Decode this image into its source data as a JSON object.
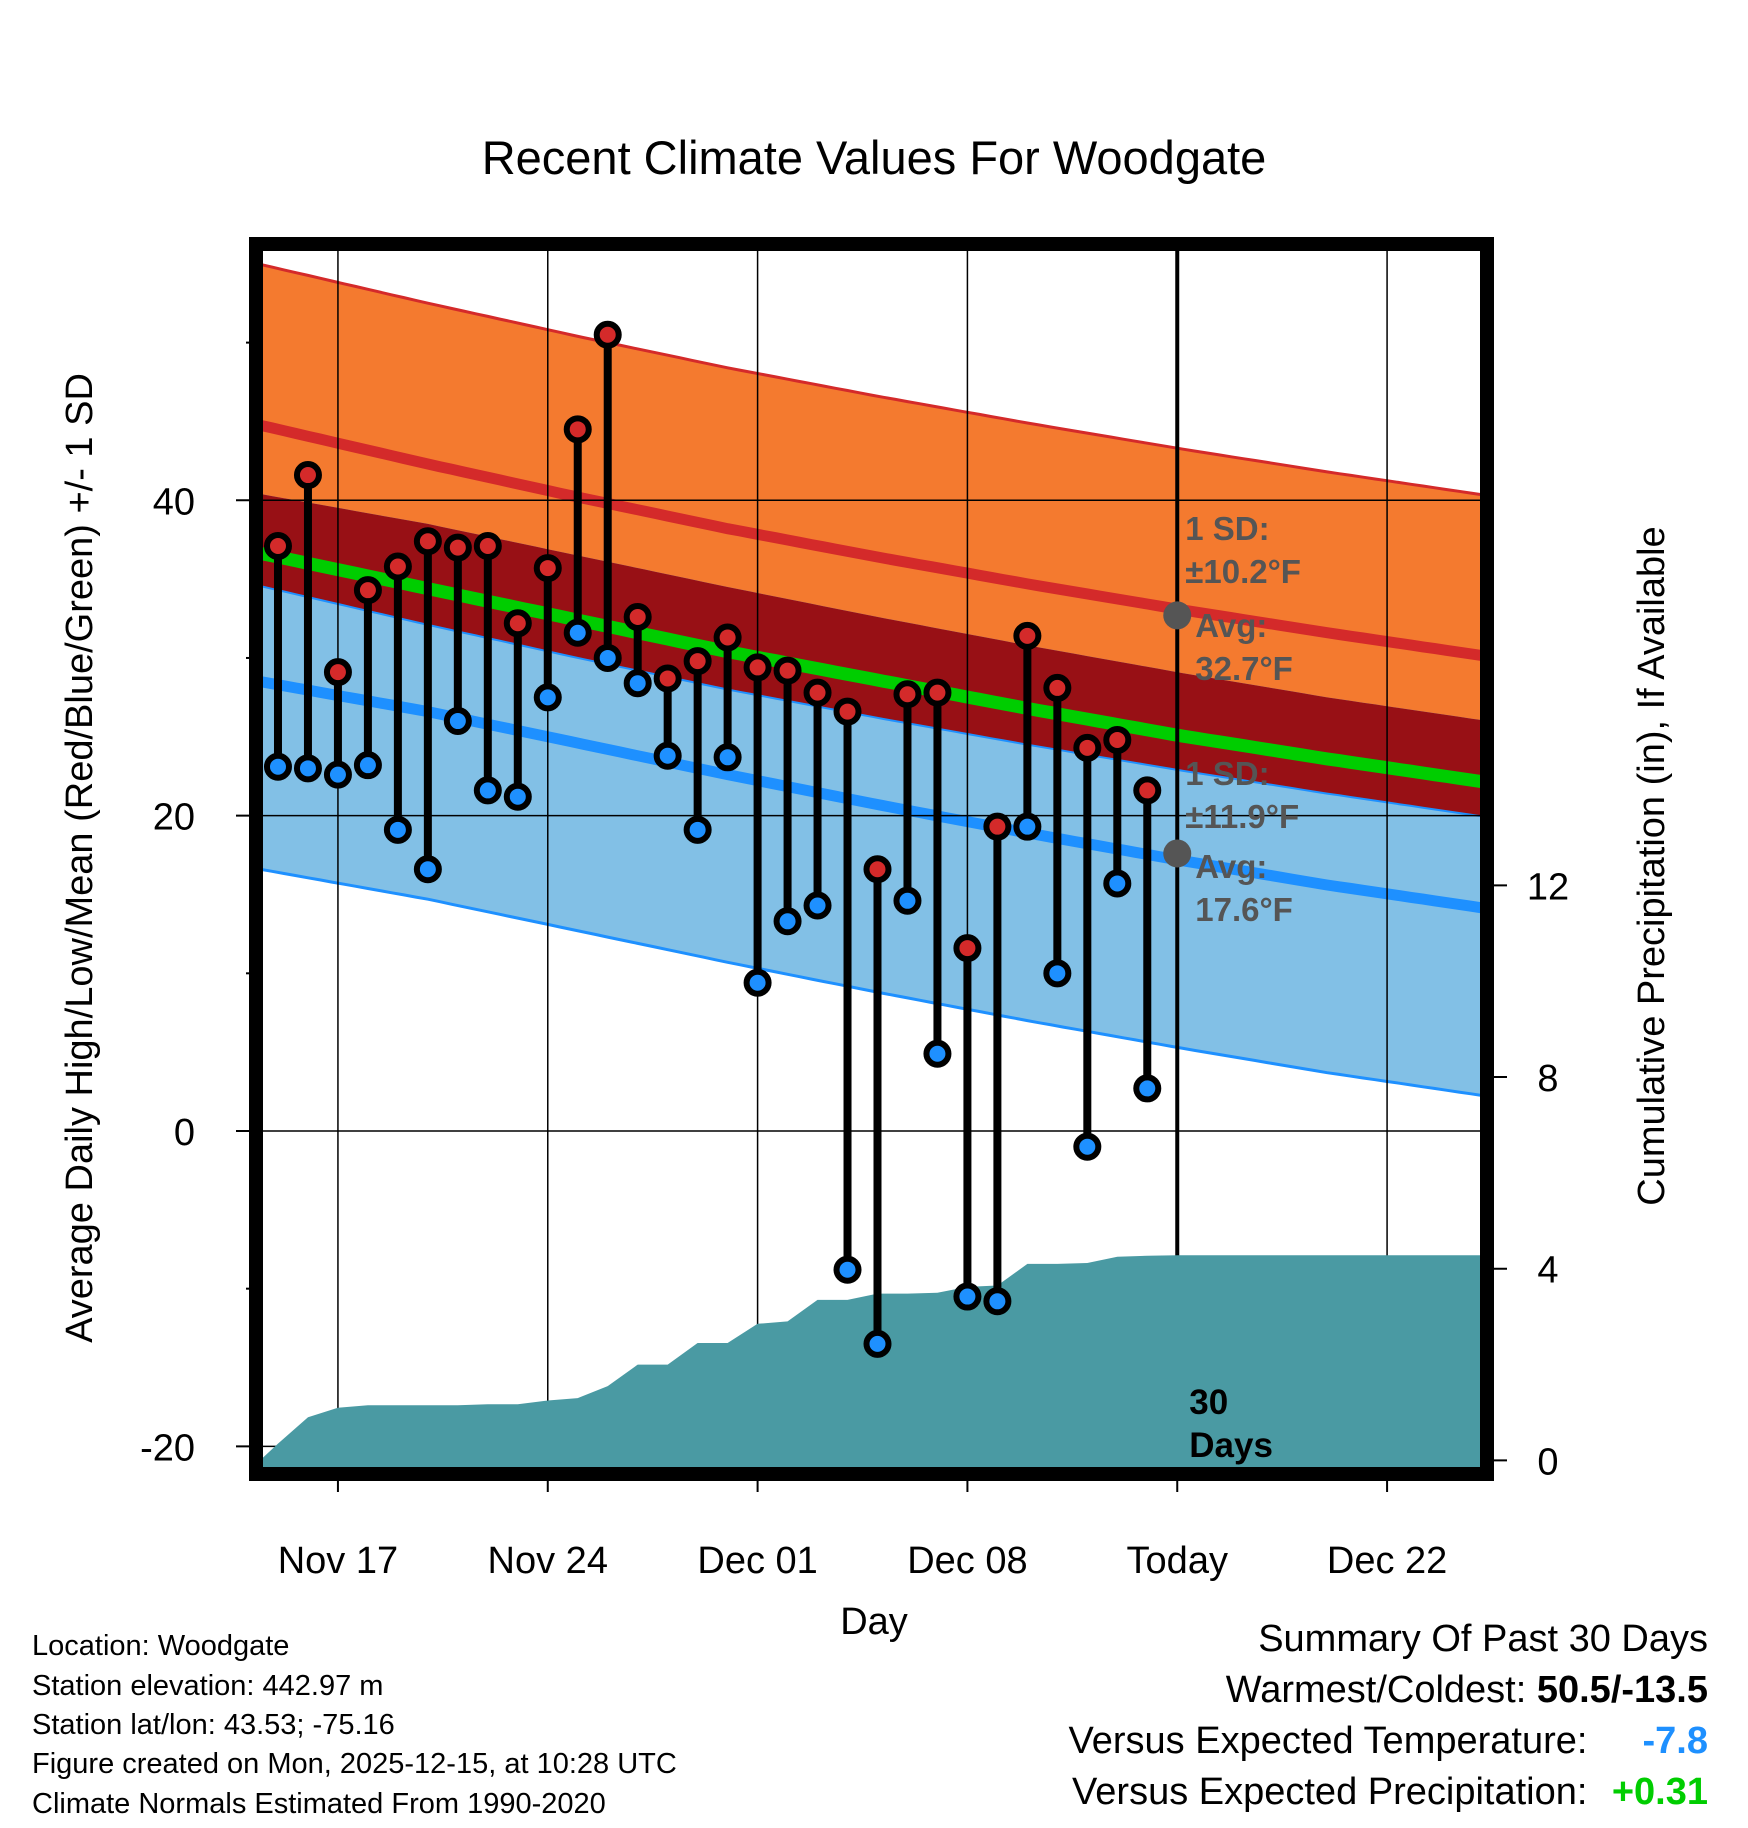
{
  "chart_data": {
    "type": "line",
    "title": "Recent Climate Values For Woodgate",
    "xlabel": "Day",
    "ylabel": "Average Daily High/Low/Mean (Red/Blue/Green) +/- 1 SD",
    "y2label": "Cumulative Precipitation (in), If Available",
    "x_tick_labels": [
      "Nov 17",
      "Nov 24",
      "Dec 01",
      "Dec 08",
      "Today",
      "Dec 22"
    ],
    "x_tick_days": [
      2,
      9,
      16,
      23,
      30,
      37
    ],
    "xlim": [
      -0.6,
      40.2
    ],
    "ylim": [
      -21.5,
      56
    ],
    "y_ticks": [
      -20,
      0,
      20,
      40
    ],
    "y_tick_labels": [
      "-20",
      "0",
      "20",
      "40"
    ],
    "y2lim": [
      -0.2,
      25.3
    ],
    "y2_ticks": [
      0,
      4,
      8,
      12
    ],
    "y2_tick_labels": [
      "0",
      "4",
      "8",
      "12"
    ],
    "today_day": 30,
    "today_label_line1": "30",
    "today_label_line2": "Days",
    "normals": {
      "days": [
        0,
        5,
        10,
        15,
        20,
        25,
        30,
        35,
        40
      ],
      "high_mean": [
        44.5,
        42.3,
        40.2,
        38.2,
        36.4,
        34.7,
        33.1,
        31.6,
        30.2
      ],
      "high_sd": 10.2,
      "low_mean": [
        28.3,
        26.6,
        24.6,
        22.6,
        20.7,
        18.9,
        17.2,
        15.6,
        14.2
      ],
      "low_sd": 11.9,
      "mean": [
        36.4,
        34.4,
        32.4,
        30.4,
        28.6,
        26.8,
        25.1,
        23.6,
        22.2
      ]
    },
    "series": [
      {
        "name": "Daily High",
        "color": "#d42a2a",
        "values": [
          37.1,
          41.6,
          29.1,
          34.3,
          35.8,
          37.4,
          37.0,
          37.1,
          32.2,
          35.7,
          44.5,
          50.5,
          32.6,
          28.7,
          29.8,
          31.3,
          29.4,
          29.2,
          27.8,
          26.6,
          16.6,
          27.7,
          27.8,
          11.6,
          19.3,
          31.4,
          28.1,
          24.3,
          24.8,
          21.6
        ]
      },
      {
        "name": "Daily Low",
        "color": "#1e90ff",
        "values": [
          23.1,
          23.0,
          22.6,
          23.2,
          19.1,
          16.6,
          26.0,
          21.6,
          21.2,
          27.5,
          31.6,
          30.0,
          28.4,
          23.8,
          19.1,
          23.7,
          9.4,
          13.3,
          14.3,
          -8.8,
          -13.5,
          14.6,
          4.9,
          -10.5,
          -10.8,
          19.3,
          10.0,
          -1.0,
          15.7,
          2.7
        ]
      },
      {
        "name": "Cumulative Precipitation",
        "color": "#4a9aa3",
        "days": [
          -0.6,
          0,
          1,
          2,
          3,
          4,
          5,
          6,
          7,
          8,
          9,
          10,
          11,
          12,
          13,
          14,
          15,
          16,
          17,
          18,
          19,
          20,
          21,
          22,
          23,
          24,
          25,
          26,
          27,
          28,
          29,
          30,
          40.2
        ],
        "values": [
          0,
          0.35,
          0.9,
          1.1,
          1.15,
          1.15,
          1.15,
          1.15,
          1.17,
          1.17,
          1.25,
          1.3,
          1.55,
          2.0,
          2.0,
          2.45,
          2.45,
          2.85,
          2.9,
          3.35,
          3.35,
          3.48,
          3.48,
          3.5,
          3.62,
          3.65,
          4.1,
          4.1,
          4.12,
          4.25,
          4.27,
          4.28,
          4.28
        ]
      }
    ],
    "annotations": {
      "high_sd_line1": "1 SD:",
      "high_sd_line2": "±10.2°F",
      "high_avg_line1": "Avg:",
      "high_avg_line2": "32.7°F",
      "high_avg_value": 32.7,
      "low_sd_line1": "1 SD:",
      "low_sd_line2": "±11.9°F",
      "low_avg_line1": "Avg:",
      "low_avg_line2": "17.6°F",
      "low_avg_value": 17.6
    },
    "colors": {
      "high_band": "#f47a2f",
      "high_line": "#d42a2a",
      "overlap_band": "#981015",
      "low_band": "#82c0e6",
      "low_line": "#1e90ff",
      "mean_line": "#00cd00",
      "precip": "#4a9aa3",
      "annotation": "#555555"
    }
  },
  "station": {
    "location": "Location: Woodgate",
    "elevation": "Station elevation: 442.97 m",
    "latlon": "Station lat/lon: 43.53; -75.16",
    "created": "Figure created on Mon, 2025-12-15, at 10:28 UTC",
    "normals": "Climate Normals Estimated From 1990-2020"
  },
  "summary": {
    "title": "Summary Of Past 30 Days",
    "warmest_coldest_label": "Warmest/Coldest:",
    "warmest_coldest_value": "50.5/-13.5",
    "temp_label": "Versus Expected Temperature:",
    "temp_value": "-7.8",
    "precip_label": "Versus Expected Precipitation:",
    "precip_value": "+0.31"
  }
}
